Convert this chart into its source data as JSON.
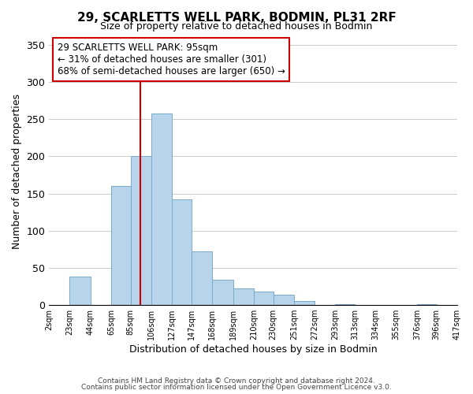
{
  "title": "29, SCARLETTS WELL PARK, BODMIN, PL31 2RF",
  "subtitle": "Size of property relative to detached houses in Bodmin",
  "xlabel": "Distribution of detached houses by size in Bodmin",
  "ylabel": "Number of detached properties",
  "bin_edges": [
    2,
    23,
    44,
    65,
    85,
    106,
    127,
    147,
    168,
    189,
    210,
    230,
    251,
    272,
    293,
    313,
    334,
    355,
    376,
    396,
    417
  ],
  "bar_heights": [
    0,
    38,
    0,
    160,
    200,
    258,
    142,
    72,
    34,
    22,
    18,
    14,
    5,
    0,
    1,
    0,
    0,
    0,
    1,
    0
  ],
  "bar_color": "#b8d4ea",
  "bar_edge_color": "#7aaac8",
  "property_line_x": 95,
  "property_line_color": "#cc0000",
  "ylim": [
    0,
    360
  ],
  "yticks": [
    0,
    50,
    100,
    150,
    200,
    250,
    300,
    350
  ],
  "tick_labels": [
    "2sqm",
    "23sqm",
    "44sqm",
    "65sqm",
    "85sqm",
    "106sqm",
    "127sqm",
    "147sqm",
    "168sqm",
    "189sqm",
    "210sqm",
    "230sqm",
    "251sqm",
    "272sqm",
    "293sqm",
    "313sqm",
    "334sqm",
    "355sqm",
    "376sqm",
    "396sqm",
    "417sqm"
  ],
  "annotation_title": "29 SCARLETTS WELL PARK: 95sqm",
  "annotation_line1": "← 31% of detached houses are smaller (301)",
  "annotation_line2": "68% of semi-detached houses are larger (650) →",
  "footer_line1": "Contains HM Land Registry data © Crown copyright and database right 2024.",
  "footer_line2": "Contains public sector information licensed under the Open Government Licence v3.0.",
  "background_color": "#ffffff",
  "plot_bg_color": "#ffffff",
  "grid_color": "#cccccc"
}
